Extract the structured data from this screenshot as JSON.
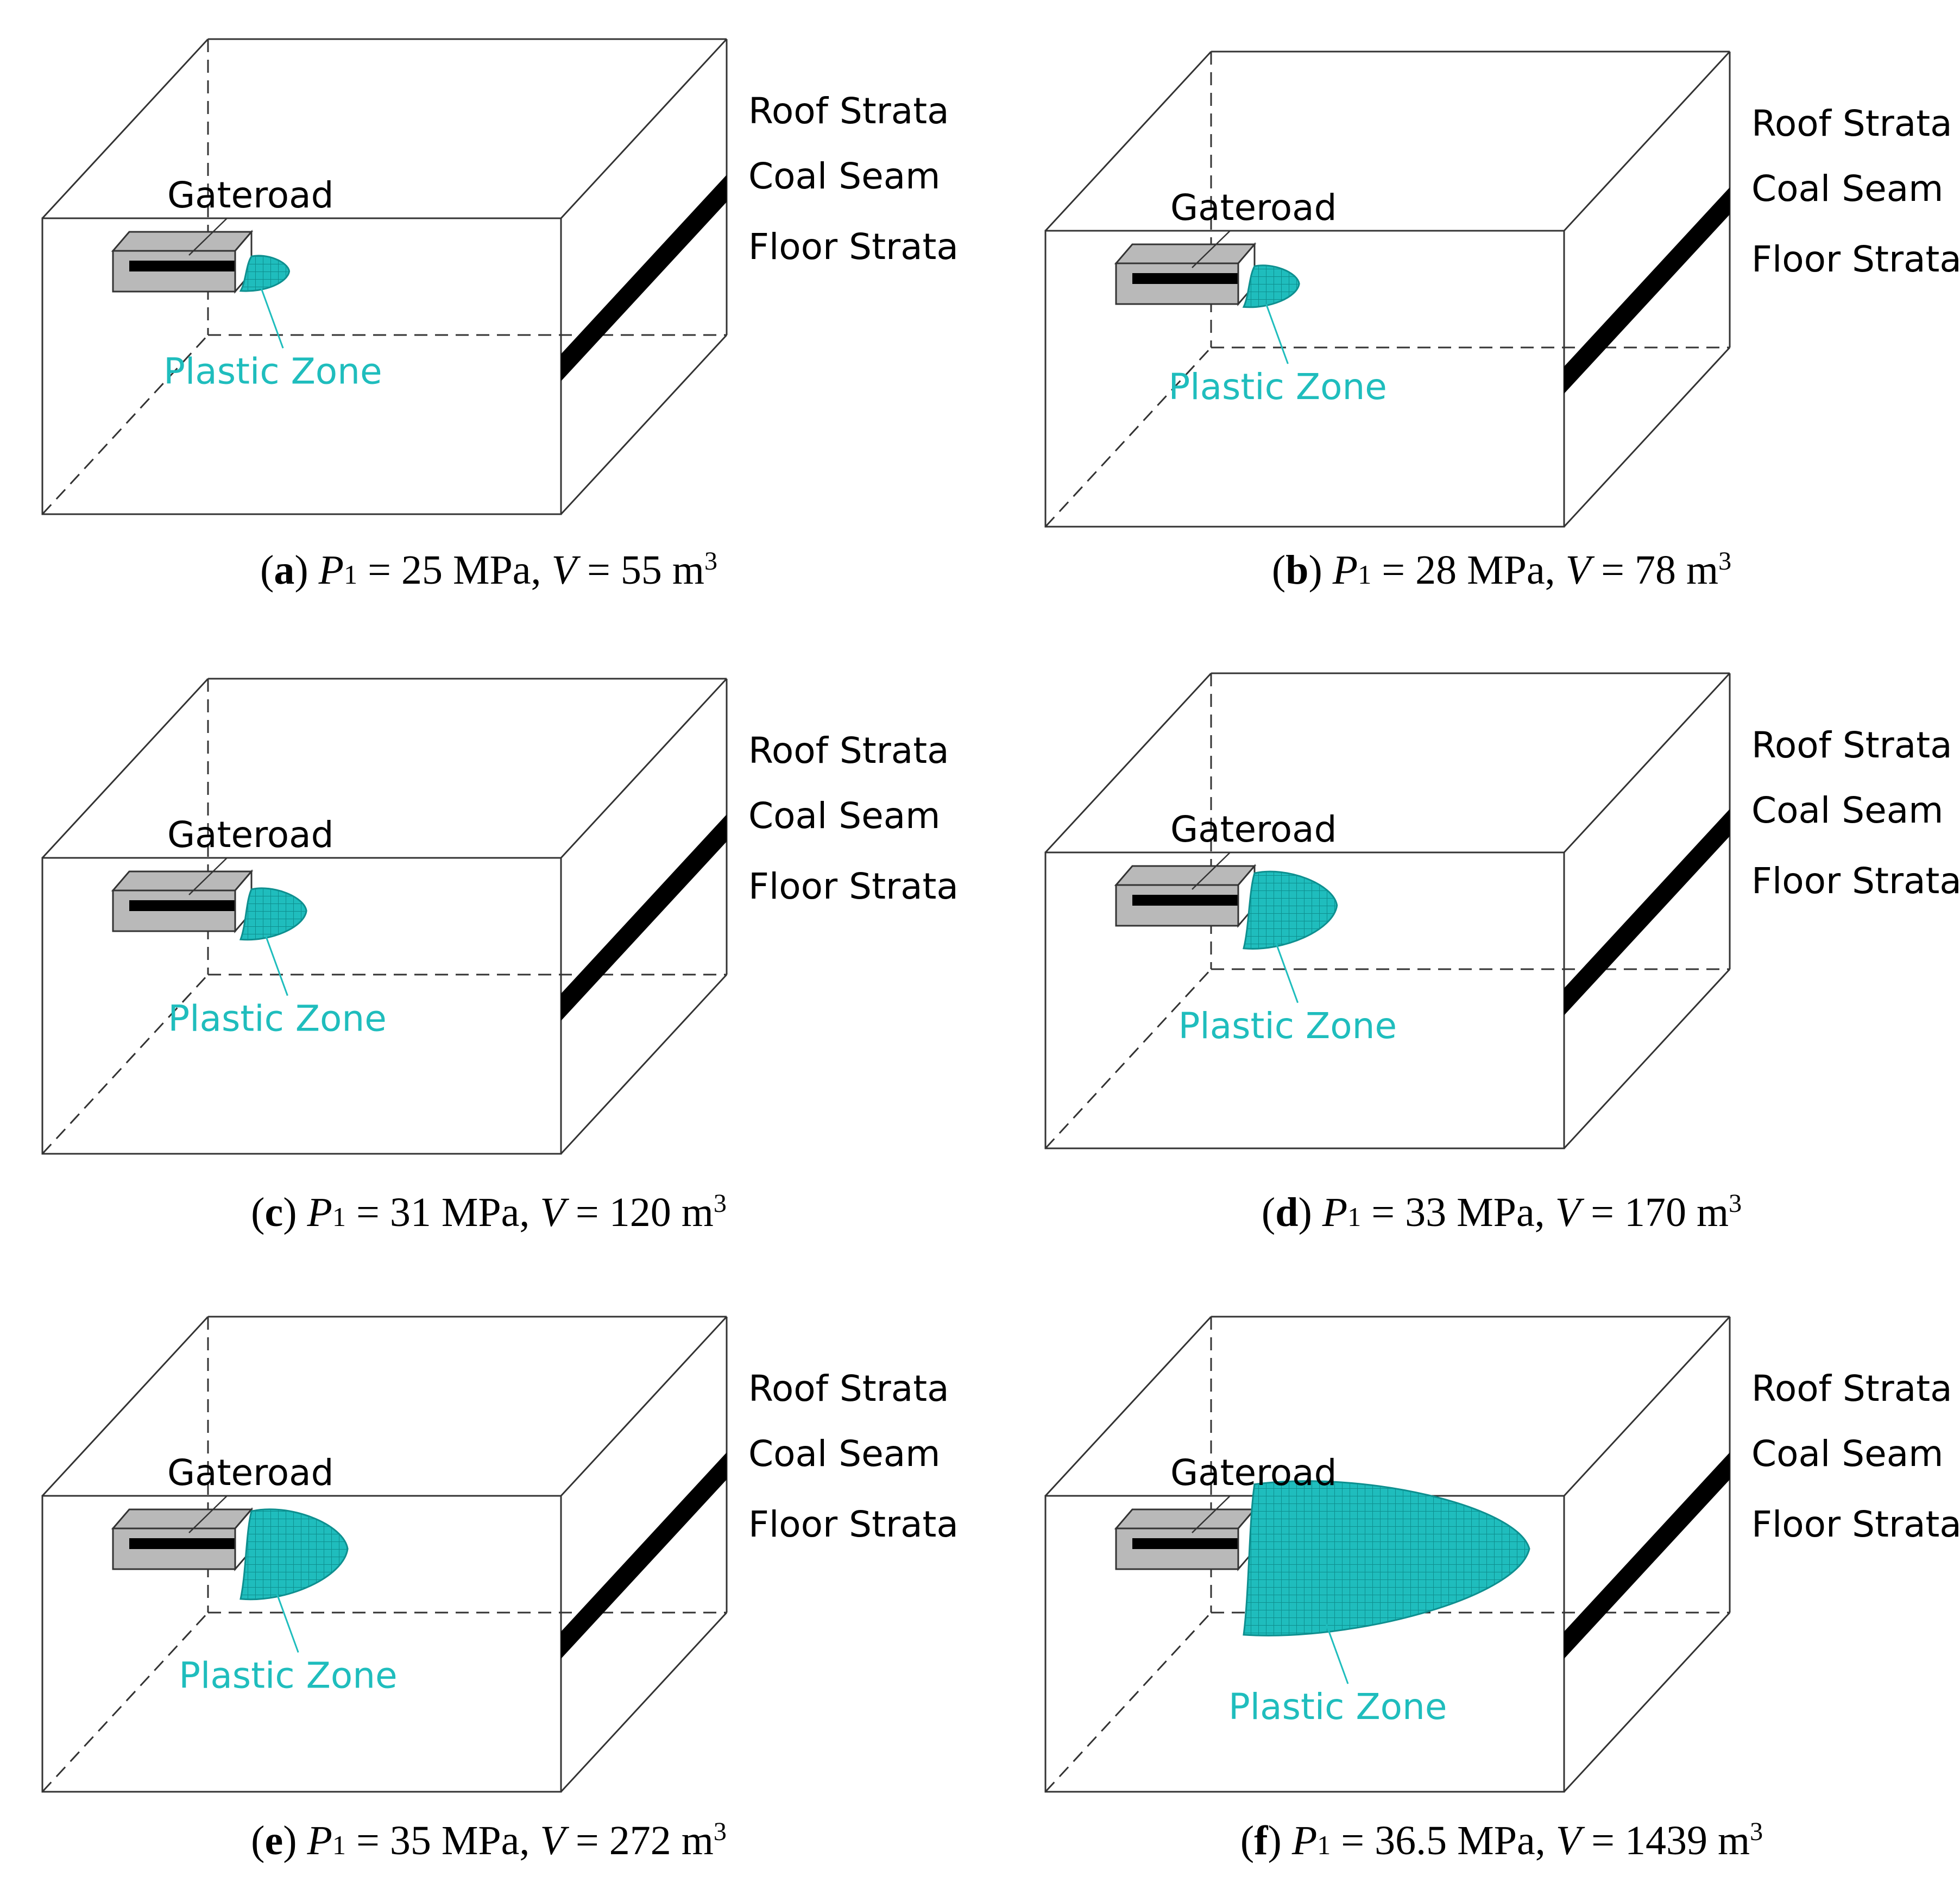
{
  "colors": {
    "plastic_zone": "#1fbdbd",
    "plastic_zone_edge": "#0e8f8f",
    "coal_seam": "#000000",
    "gateroad_fill": "#b9b9b9",
    "frame": "#333333",
    "caption_text": "#000000"
  },
  "legend": {
    "roof": "Roof Strata",
    "coal": "Coal Seam",
    "floor": "Floor Strata"
  },
  "panels": [
    {
      "id": "a",
      "gateroad": "Gateroad",
      "plastic_zone": "Plastic Zone",
      "caption": {
        "letter": "a",
        "var_p": "P",
        "sub": "1",
        "p_value": " = 25 MPa, ",
        "var_v": "V",
        "v_value": " = 55 m",
        "sup": "3"
      },
      "zone_scale": 0.55
    },
    {
      "id": "b",
      "gateroad": "Gateroad",
      "plastic_zone": "Plastic Zone",
      "caption": {
        "letter": "b",
        "var_p": "P",
        "sub": "1",
        "p_value": " = 28 MPa, ",
        "var_v": "V",
        "v_value": " = 78 m",
        "sup": "3"
      },
      "zone_scale": 0.65
    },
    {
      "id": "c",
      "gateroad": "Gateroad",
      "plastic_zone": "Plastic Zone",
      "caption": {
        "letter": "c",
        "var_p": "P",
        "sub": "1",
        "p_value": " = 31 MPa, ",
        "var_v": "V",
        "v_value": " = 120 m",
        "sup": "3"
      },
      "zone_scale": 0.8
    },
    {
      "id": "d",
      "gateroad": "Gateroad",
      "plastic_zone": "Plastic Zone",
      "caption": {
        "letter": "d",
        "var_p": "P",
        "sub": "1",
        "p_value": " = 33 MPa, ",
        "var_v": "V",
        "v_value": " = 170 m",
        "sup": "3"
      },
      "zone_scale": 1.2
    },
    {
      "id": "e",
      "gateroad": "Gateroad",
      "plastic_zone": "Plastic Zone",
      "caption": {
        "letter": "e",
        "var_p": "P",
        "sub": "1",
        "p_value": " = 35 MPa, ",
        "var_v": "V",
        "v_value": " = 272 m",
        "sup": "3"
      },
      "zone_scale": 1.4
    },
    {
      "id": "f",
      "gateroad": "Gateroad",
      "plastic_zone": "Plastic Zone",
      "caption": {
        "letter": "f",
        "var_p": "P",
        "sub": "1",
        "p_value": " = 36.5 MPa, ",
        "var_v": "V",
        "v_value": " = 1439 m",
        "sup": "3"
      },
      "zone_scale": 4.0
    }
  ]
}
